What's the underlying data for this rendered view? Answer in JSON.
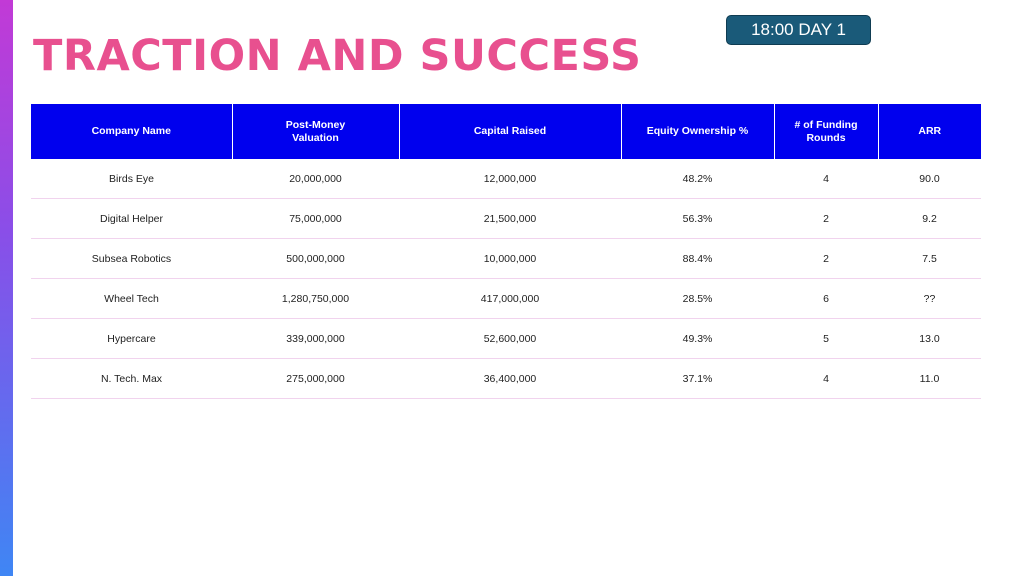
{
  "slide": {
    "title": "TRACTION AND SUCCESS",
    "timer": "18:00 DAY 1"
  },
  "table": {
    "headers": [
      [
        "Company Name"
      ],
      [
        "Post-Money",
        "Valuation"
      ],
      [
        "Capital Raised"
      ],
      [
        "Equity Ownership %"
      ],
      [
        "# of Funding",
        "Rounds"
      ],
      [
        "ARR"
      ]
    ],
    "rows": [
      [
        "Birds Eye",
        "20,000,000",
        "12,000,000",
        "48.2%",
        "4",
        "90.0"
      ],
      [
        "Digital Helper",
        "75,000,000",
        "21,500,000",
        "56.3%",
        "2",
        "9.2"
      ],
      [
        "Subsea Robotics",
        "500,000,000",
        "10,000,000",
        "88.4%",
        "2",
        "7.5"
      ],
      [
        "Wheel Tech",
        "1,280,750,000",
        "417,000,000",
        "28.5%",
        "6",
        "??"
      ],
      [
        "Hypercare",
        "339,000,000",
        "52,600,000",
        "49.3%",
        "5",
        "13.0"
      ],
      [
        "N. Tech. Max",
        "275,000,000",
        "36,400,000",
        "37.1%",
        "4",
        "11.0"
      ]
    ]
  },
  "colors": {
    "title": "#e8508f",
    "header_bg": "#0000ee",
    "timer_bg": "#1a5a79",
    "row_divider": "#f1d3ee"
  }
}
